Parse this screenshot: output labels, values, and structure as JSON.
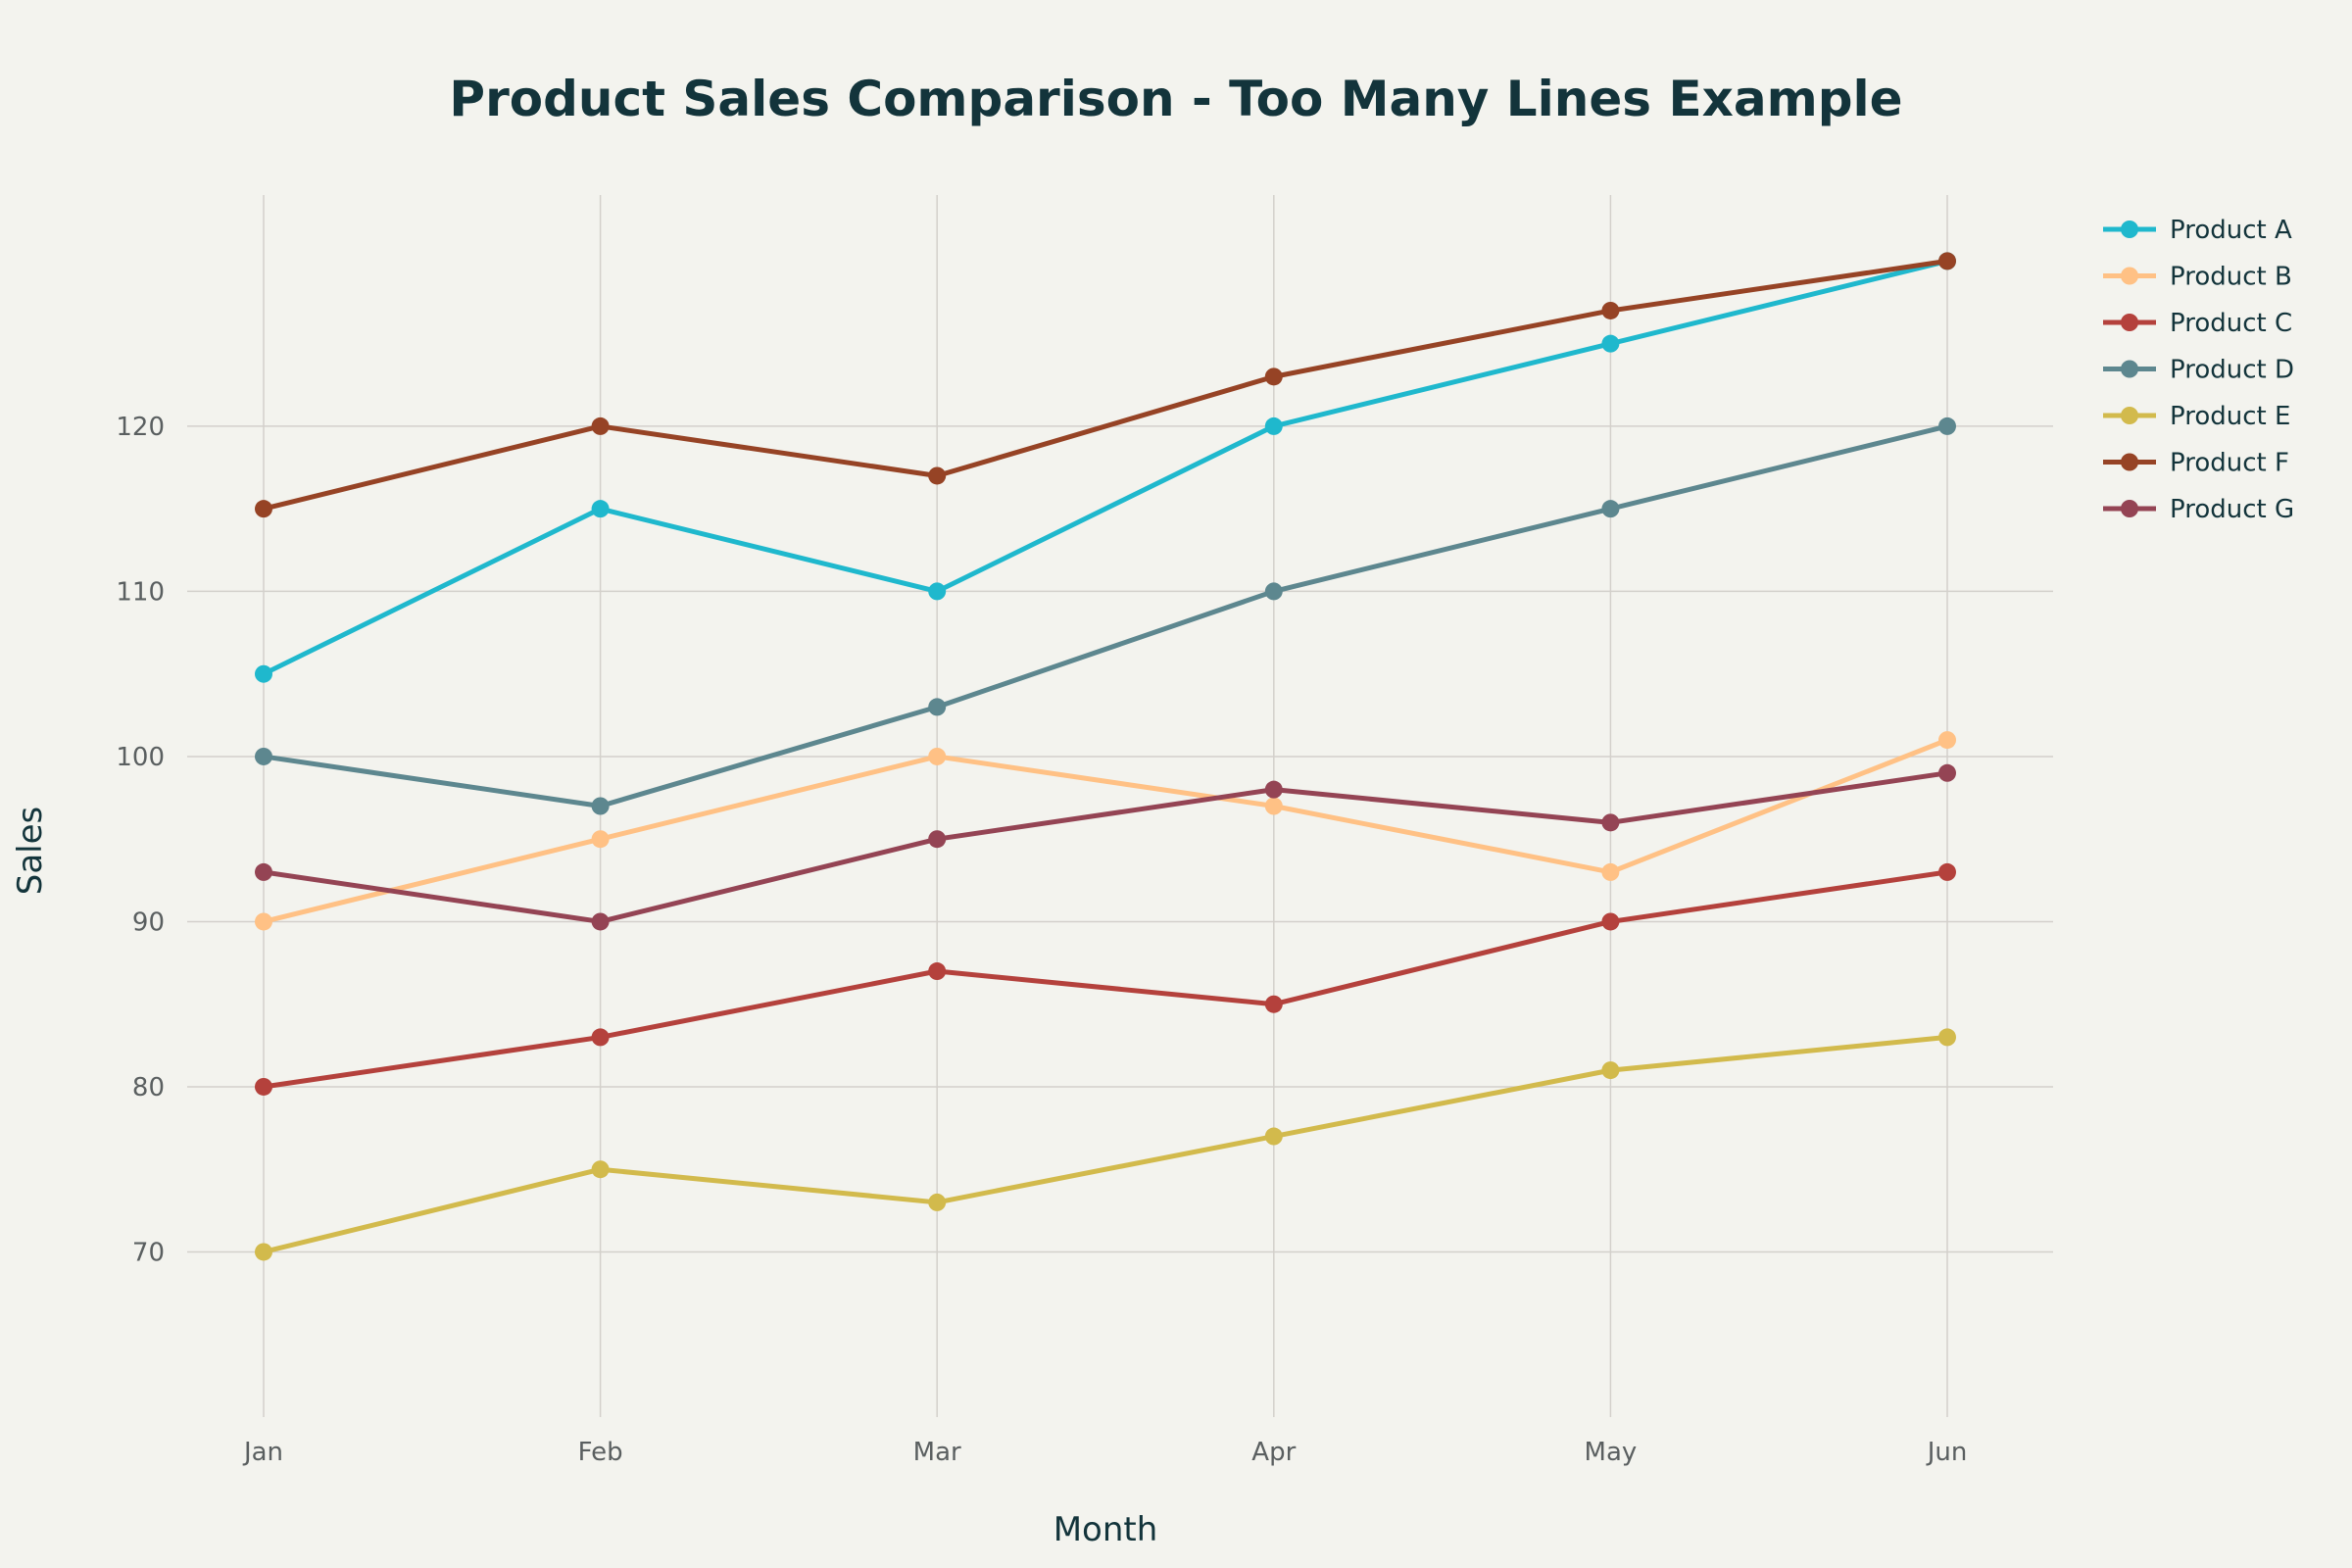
{
  "chart_data": {
    "type": "line",
    "title": "Product Sales Comparison - Too Many Lines Example",
    "xlabel": "Month",
    "ylabel": "Sales",
    "categories": [
      "Jan",
      "Feb",
      "Mar",
      "Apr",
      "May",
      "Jun"
    ],
    "ylim": [
      60,
      134
    ],
    "yticks": [
      70,
      80,
      90,
      100,
      110,
      120
    ],
    "grid": true,
    "legend_position": "top-right",
    "series": [
      {
        "name": "Product A",
        "color": "#1fb8cd",
        "values": [
          105,
          115,
          110,
          120,
          125,
          130
        ]
      },
      {
        "name": "Product B",
        "color": "#ffc185",
        "values": [
          90,
          95,
          100,
          97,
          93,
          101
        ]
      },
      {
        "name": "Product C",
        "color": "#b4413c",
        "values": [
          80,
          83,
          87,
          85,
          90,
          93
        ]
      },
      {
        "name": "Product D",
        "color": "#5d878f",
        "values": [
          100,
          97,
          103,
          110,
          115,
          120
        ]
      },
      {
        "name": "Product E",
        "color": "#d2ba4c",
        "values": [
          70,
          75,
          73,
          77,
          81,
          83
        ]
      },
      {
        "name": "Product F",
        "color": "#964325",
        "values": [
          115,
          120,
          117,
          123,
          127,
          130
        ]
      },
      {
        "name": "Product G",
        "color": "#944454",
        "values": [
          93,
          90,
          95,
          98,
          96,
          99
        ]
      }
    ]
  }
}
